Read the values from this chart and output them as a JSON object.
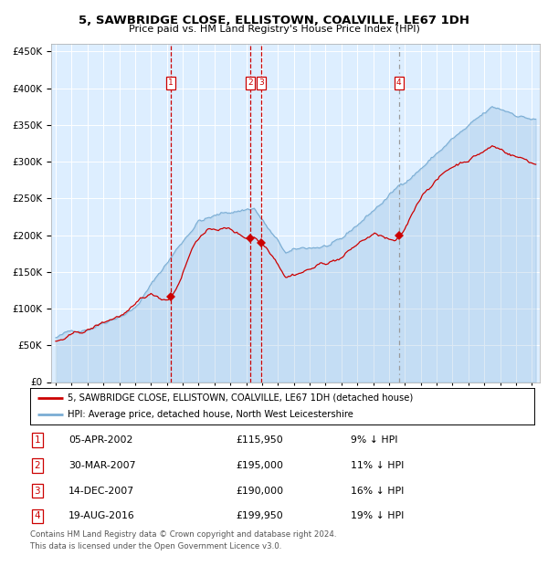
{
  "title": "5, SAWBRIDGE CLOSE, ELLISTOWN, COALVILLE, LE67 1DH",
  "subtitle": "Price paid vs. HM Land Registry's House Price Index (HPI)",
  "legend_line1": "5, SAWBRIDGE CLOSE, ELLISTOWN, COALVILLE, LE67 1DH (detached house)",
  "legend_line2": "HPI: Average price, detached house, North West Leicestershire",
  "footer1": "Contains HM Land Registry data © Crown copyright and database right 2024.",
  "footer2": "This data is licensed under the Open Government Licence v3.0.",
  "transactions": [
    {
      "num": 1,
      "date": "05-APR-2002",
      "price": 115950,
      "pct": "9% ↓ HPI",
      "date_x": 2002.26
    },
    {
      "num": 2,
      "date": "30-MAR-2007",
      "price": 195000,
      "pct": "11% ↓ HPI",
      "date_x": 2007.24
    },
    {
      "num": 3,
      "date": "14-DEC-2007",
      "price": 190000,
      "pct": "16% ↓ HPI",
      "date_x": 2007.95
    },
    {
      "num": 4,
      "date": "19-AUG-2016",
      "price": 199950,
      "pct": "19% ↓ HPI",
      "date_x": 2016.63
    }
  ],
  "hpi_color": "#7aadd4",
  "price_color": "#cc0000",
  "plot_bg": "#ddeeff",
  "ylim": [
    0,
    460000
  ],
  "yticks": [
    0,
    50000,
    100000,
    150000,
    200000,
    250000,
    300000,
    350000,
    400000,
    450000
  ],
  "xlim_start": 1994.7,
  "xlim_end": 2025.5,
  "xticks": [
    1995,
    1996,
    1997,
    1998,
    1999,
    2000,
    2001,
    2002,
    2003,
    2004,
    2005,
    2006,
    2007,
    2008,
    2009,
    2010,
    2011,
    2012,
    2013,
    2014,
    2015,
    2016,
    2017,
    2018,
    2019,
    2020,
    2021,
    2022,
    2023,
    2024,
    2025
  ]
}
